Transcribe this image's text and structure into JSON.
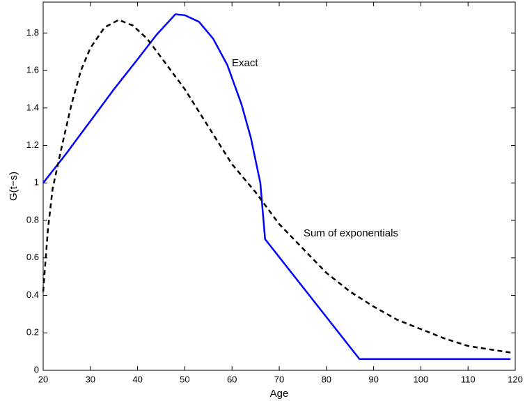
{
  "chart_data": {
    "type": "line",
    "xlabel": "Age",
    "ylabel": "G(t−s)",
    "xlim": [
      20,
      120
    ],
    "xticks": [
      20,
      30,
      40,
      50,
      60,
      70,
      80,
      90,
      100,
      110,
      120
    ],
    "ylim": [
      0,
      1.965
    ],
    "yticks": [
      0,
      0.2,
      0.4,
      0.6,
      0.8,
      1,
      1.2,
      1.4,
      1.6,
      1.8
    ],
    "annotations": [
      "Exact",
      "Sum of exponentials"
    ],
    "series": [
      {
        "color": "#0000ff",
        "dash": false,
        "x": [
          20,
          25,
          30,
          35,
          40,
          44,
          48,
          50,
          53,
          56,
          59,
          62,
          64,
          66,
          67,
          87,
          119
        ],
        "values": [
          1,
          1.16,
          1.33,
          1.5,
          1.66,
          1.79,
          1.9,
          1.895,
          1.86,
          1.77,
          1.63,
          1.42,
          1.24,
          1.0,
          0.7,
          0.06,
          0.06
        ]
      },
      {
        "color": "#000000",
        "dash": true,
        "x": [
          20,
          21,
          22,
          24,
          26,
          28,
          30,
          33,
          36,
          39,
          42,
          45,
          50,
          55,
          60,
          65,
          70,
          75,
          80,
          85,
          90,
          95,
          100,
          105,
          110,
          115,
          119
        ],
        "values": [
          0.42,
          0.75,
          0.97,
          1.2,
          1.42,
          1.6,
          1.72,
          1.83,
          1.87,
          1.84,
          1.77,
          1.67,
          1.5,
          1.3,
          1.1,
          0.95,
          0.78,
          0.65,
          0.52,
          0.42,
          0.34,
          0.27,
          0.22,
          0.17,
          0.13,
          0.11,
          0.095
        ]
      }
    ]
  }
}
